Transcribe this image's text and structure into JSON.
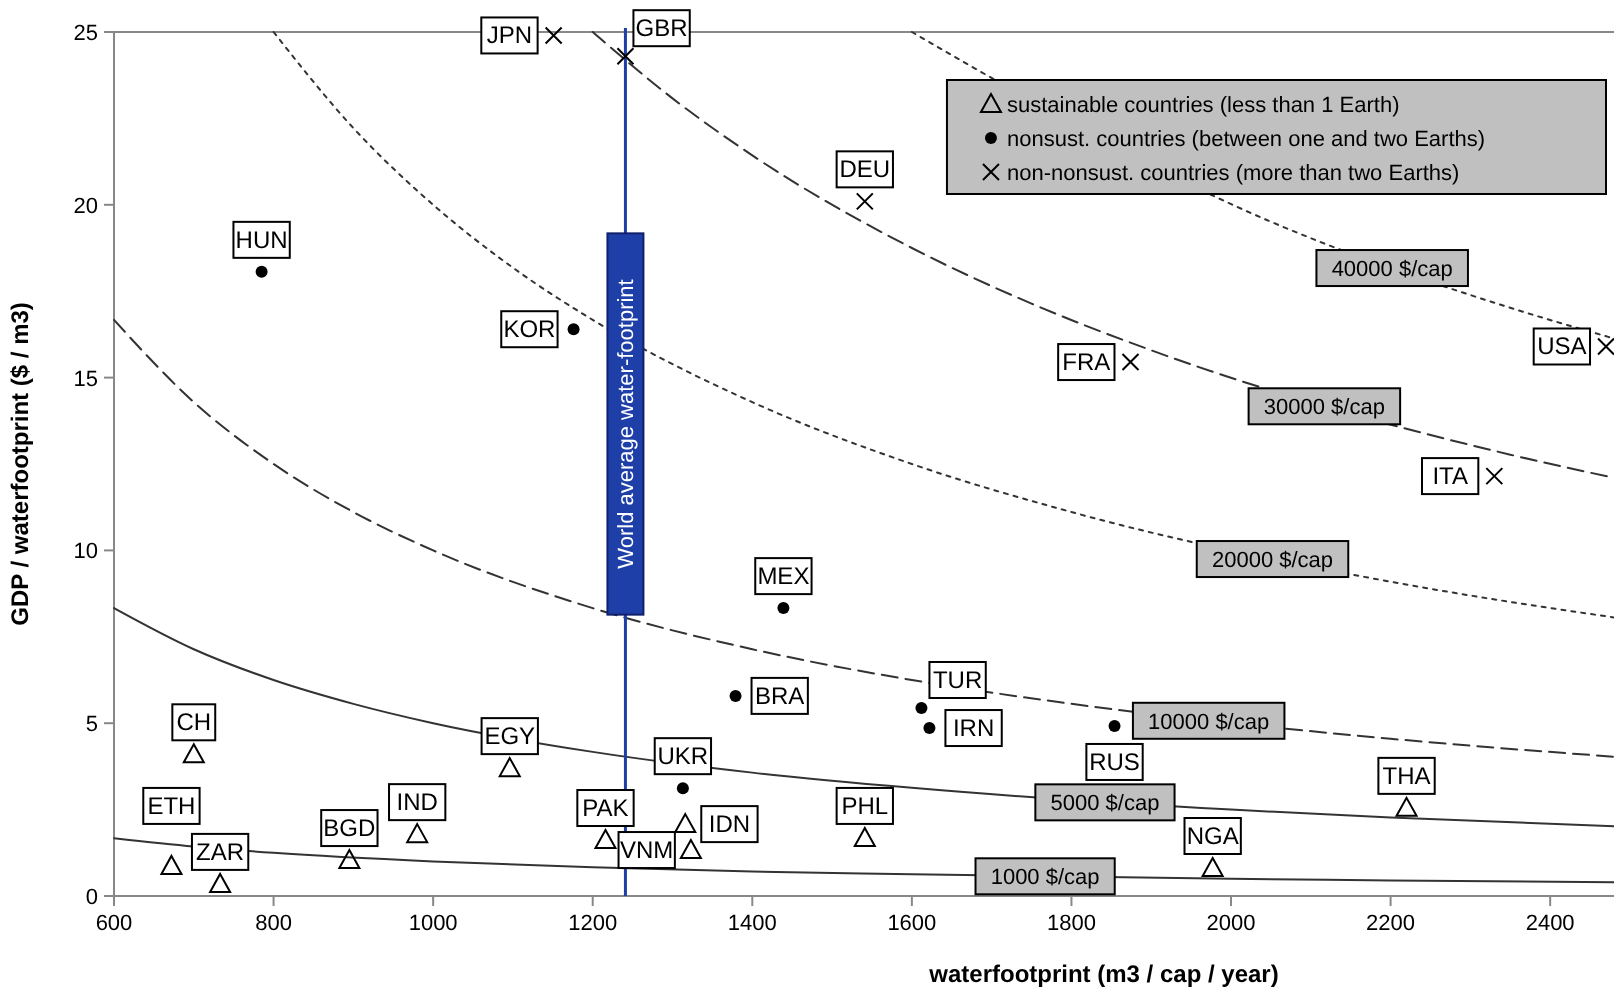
{
  "chart_data": {
    "type": "scatter",
    "xlabel": "waterfootprint (m3 / cap / year)",
    "ylabel": "GDP / waterfootprint ($ / m3)",
    "xlim": [
      600,
      2480
    ],
    "xticks": [
      600,
      800,
      1000,
      1200,
      1400,
      1600,
      1800,
      2000,
      2200,
      2400
    ],
    "ylim": [
      0,
      25
    ],
    "yticks": [
      0,
      5,
      10,
      15,
      20,
      25
    ],
    "grid": false,
    "legend": "top right",
    "series": [
      {
        "type": "line",
        "color": "#333333",
        "line_style": "solid",
        "marker": "none",
        "x": [
          600,
          700,
          800,
          1000,
          1200,
          1400,
          1600,
          2000,
          2200,
          2480
        ],
        "values": [
          1.67,
          1.43,
          1.25,
          1.0,
          0.83,
          0.71,
          0.63,
          0.5,
          0.45,
          0.4
        ]
      },
      {
        "type": "line",
        "color": "#333333",
        "line_style": "solid",
        "marker": "none",
        "x": [
          600,
          700,
          800,
          900,
          1000,
          1200,
          1400,
          1600,
          2000,
          2200,
          2480
        ],
        "values": [
          8.33,
          7.14,
          6.25,
          5.56,
          5.0,
          4.17,
          3.57,
          3.13,
          2.5,
          2.27,
          2.02
        ]
      },
      {
        "type": "line",
        "color": "#333333",
        "line_style": "dashed",
        "marker": "none",
        "x": [
          600,
          700,
          800,
          900,
          1000,
          1200,
          1400,
          1600,
          1800,
          2200,
          2480
        ],
        "values": [
          16.67,
          14.29,
          12.5,
          11.11,
          10,
          8.33,
          7.14,
          6.25,
          5.56,
          4.55,
          4.03
        ]
      },
      {
        "type": "line",
        "color": "#333333",
        "line_style": "dotted",
        "marker": "none",
        "x": [
          800,
          900,
          1000,
          1100,
          1200,
          1400,
          1600,
          1800,
          2250,
          2480
        ],
        "values": [
          25,
          22.22,
          20,
          18.18,
          16.67,
          14.29,
          12.5,
          11.11,
          8.89,
          8.06
        ]
      },
      {
        "type": "line",
        "color": "#333333",
        "line_style": "dashed",
        "marker": "none",
        "x": [
          1200,
          1300,
          1400,
          1600,
          1750,
          1900,
          2350,
          2480
        ],
        "values": [
          25,
          23.08,
          21.43,
          18.75,
          17.14,
          15.79,
          12.77,
          12.1
        ]
      },
      {
        "type": "line",
        "color": "#333333",
        "line_style": "dotted",
        "marker": "none",
        "x": [
          1600,
          2050,
          2350,
          2480
        ],
        "values": [
          25,
          19.51,
          17.02,
          16.13
        ]
      },
      {
        "name": "sustainable countries (less than 1 Earth)",
        "color": "#000000",
        "marker": "triangle",
        "x": [
          700,
          1096,
          1316,
          1323,
          1216,
          980,
          895,
          672,
          733,
          1541,
          1977,
          2220
        ],
        "values": [
          4.1,
          3.7,
          2.08,
          1.33,
          1.62,
          1.79,
          1.04,
          0.87,
          0.35,
          1.68,
          0.81,
          2.55
        ],
        "value_labels": [
          "CH",
          "EGY",
          "IDN",
          "VNM",
          "PAK",
          "IND",
          "BGD",
          "ETH",
          "ZAR",
          "PHL",
          "NGA",
          "THA"
        ]
      },
      {
        "name": "nonsust. countries (between one and two Earths)",
        "color": "#000000",
        "marker": "circle",
        "x": [
          785,
          1176,
          1439,
          1379,
          1313,
          1612,
          1622,
          1854
        ],
        "values": [
          18.06,
          16.4,
          8.33,
          5.79,
          3.12,
          5.44,
          4.86,
          4.92
        ],
        "value_labels": [
          "HUN",
          "KOR",
          "MEX",
          "BRA",
          "UKR",
          "TUR",
          "IRN",
          "RUS"
        ]
      },
      {
        "name": "non-nonsust. countries (more than two Earths)",
        "color": "#000000",
        "marker": "cross",
        "x": [
          1151,
          1241,
          1541,
          1874,
          2330,
          2470
        ],
        "values": [
          24.9,
          24.3,
          20.1,
          15.45,
          12.15,
          15.9
        ],
        "value_labels": [
          "JPN",
          "GBR",
          "DEU",
          "FRA",
          "ITA",
          "USA"
        ]
      }
    ],
    "ref_lines": [
      {
        "axis": "x",
        "value": 1241,
        "label": "World average water-footprint",
        "color": "#1f3fa8"
      }
    ],
    "annotations": [
      {
        "text": "40000 $/cap",
        "x": 2202,
        "y": 18.17
      },
      {
        "text": "30000 $/cap",
        "x": 2117,
        "y": 14.17
      },
      {
        "text": "20000 $/cap",
        "x": 2052,
        "y": 9.75
      },
      {
        "text": "10000 $/cap",
        "x": 1972,
        "y": 5.07
      },
      {
        "text": "5000 $/cap",
        "x": 1842,
        "y": 2.71
      },
      {
        "text": "1000 $/cap",
        "x": 1767,
        "y": 0.57
      }
    ]
  }
}
